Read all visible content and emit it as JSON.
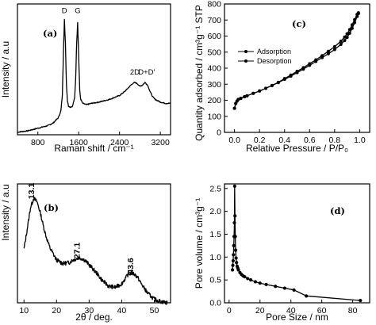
{
  "chart_data": [
    {
      "panel": "(a)",
      "type": "line",
      "xlabel": "Raman shift / cm⁻¹",
      "ylabel": "Intensity / a.u",
      "xlim": [
        400,
        3400
      ],
      "ylim": [
        0,
        1
      ],
      "xticks": [
        "800",
        "1600",
        "2400",
        "3200"
      ],
      "x": [
        400,
        600,
        800,
        1000,
        1100,
        1200,
        1250,
        1280,
        1300,
        1320,
        1340,
        1360,
        1380,
        1400,
        1440,
        1480,
        1520,
        1540,
        1560,
        1580,
        1600,
        1620,
        1640,
        1680,
        1750,
        1850,
        2000,
        2200,
        2400,
        2500,
        2600,
        2650,
        2700,
        2750,
        2800,
        2850,
        2900,
        2950,
        3000,
        3050,
        3100,
        3150,
        3200,
        3300,
        3400
      ],
      "series": [
        {
          "values": [
            0.02,
            0.03,
            0.05,
            0.07,
            0.09,
            0.13,
            0.18,
            0.3,
            0.62,
            0.88,
            0.7,
            0.38,
            0.26,
            0.22,
            0.21,
            0.22,
            0.28,
            0.42,
            0.7,
            0.86,
            0.6,
            0.34,
            0.27,
            0.24,
            0.23,
            0.24,
            0.25,
            0.27,
            0.3,
            0.33,
            0.37,
            0.39,
            0.4,
            0.39,
            0.37,
            0.38,
            0.4,
            0.38,
            0.33,
            0.29,
            0.27,
            0.26,
            0.25,
            0.24,
            0.24
          ]
        }
      ],
      "annotations": [
        "D",
        "G",
        "2D",
        "D+D'"
      ]
    },
    {
      "panel": "(b)",
      "type": "line",
      "xlabel": "2θ / deg.",
      "ylabel": "Intensity / a.u",
      "xlim": [
        8,
        55
      ],
      "ylim": [
        0,
        1
      ],
      "xticks": [
        "10",
        "20",
        "30",
        "40",
        "50"
      ],
      "x": [
        10,
        11,
        12,
        13,
        14,
        15,
        16,
        17,
        18,
        20,
        22,
        24,
        25,
        26,
        27,
        28,
        29,
        30,
        32,
        34,
        36,
        38,
        40,
        41,
        42,
        43,
        44,
        45,
        46,
        48,
        50,
        52,
        54
      ],
      "series": [
        {
          "values": [
            0.45,
            0.62,
            0.8,
            0.88,
            0.85,
            0.76,
            0.64,
            0.54,
            0.46,
            0.36,
            0.33,
            0.34,
            0.36,
            0.37,
            0.38,
            0.37,
            0.35,
            0.32,
            0.26,
            0.19,
            0.14,
            0.13,
            0.16,
            0.2,
            0.24,
            0.25,
            0.24,
            0.21,
            0.16,
            0.08,
            0.03,
            0.01,
            0.0
          ]
        }
      ],
      "annotations": [
        "13.1",
        "27.1",
        "43.6"
      ]
    },
    {
      "panel": "(c)",
      "type": "line",
      "xlabel": "Relative Pressure / P/P₀",
      "ylabel": "Quantity adsorbed / cm³g⁻¹ STP",
      "xlim": [
        -0.08,
        1.08
      ],
      "ylim": [
        0,
        800
      ],
      "xticks": [
        "0.0",
        "0.2",
        "0.4",
        "0.6",
        "0.8",
        "1.0"
      ],
      "yticks": [
        "0",
        "100",
        "200",
        "300",
        "400",
        "500",
        "600",
        "700",
        "800"
      ],
      "legend": [
        "Adsorption",
        "Desorption"
      ],
      "legend_position": "top-left",
      "x": [
        0.0,
        0.01,
        0.02,
        0.03,
        0.05,
        0.08,
        0.1,
        0.15,
        0.2,
        0.25,
        0.3,
        0.35,
        0.4,
        0.45,
        0.5,
        0.55,
        0.6,
        0.65,
        0.7,
        0.75,
        0.8,
        0.85,
        0.88,
        0.9,
        0.92,
        0.94,
        0.96,
        0.98,
        0.99
      ],
      "series": [
        {
          "name": "Adsorption",
          "values": [
            150,
            180,
            195,
            205,
            212,
            222,
            228,
            243,
            258,
            275,
            292,
            310,
            330,
            350,
            372,
            394,
            418,
            442,
            466,
            490,
            516,
            548,
            572,
            592,
            618,
            648,
            684,
            722,
            740
          ]
        },
        {
          "name": "Desorption",
          "values": [
            150,
            180,
            195,
            205,
            212,
            222,
            228,
            243,
            258,
            275,
            292,
            312,
            335,
            357,
            380,
            403,
            428,
            452,
            478,
            505,
            534,
            568,
            594,
            614,
            640,
            670,
            702,
            735,
            745
          ]
        }
      ]
    },
    {
      "panel": "(d)",
      "type": "line",
      "xlabel": "Pore Size / nm",
      "ylabel": "Pore volume / cm³g⁻¹",
      "xlim": [
        -3,
        91
      ],
      "ylim": [
        0,
        2.6
      ],
      "xticks": [
        "0",
        "20",
        "40",
        "60",
        "80"
      ],
      "yticks": [
        "0.0",
        "0.5",
        "1.0",
        "1.5",
        "2.0",
        "2.5"
      ],
      "x": [
        2.2,
        2.4,
        2.6,
        2.8,
        3.0,
        3.2,
        3.4,
        3.6,
        3.8,
        4.0,
        4.2,
        4.5,
        4.8,
        5.2,
        5.6,
        6,
        7,
        8,
        9,
        10,
        12,
        14,
        17,
        20,
        24,
        30,
        36,
        42,
        50,
        85
      ],
      "series": [
        {
          "values": [
            0.72,
            0.82,
            0.92,
            1.05,
            1.25,
            1.45,
            1.75,
            2.55,
            1.9,
            1.45,
            1.15,
            0.98,
            0.88,
            0.8,
            0.76,
            0.72,
            0.66,
            0.62,
            0.59,
            0.57,
            0.53,
            0.5,
            0.46,
            0.43,
            0.4,
            0.36,
            0.32,
            0.28,
            0.15,
            0.05
          ]
        }
      ]
    }
  ]
}
